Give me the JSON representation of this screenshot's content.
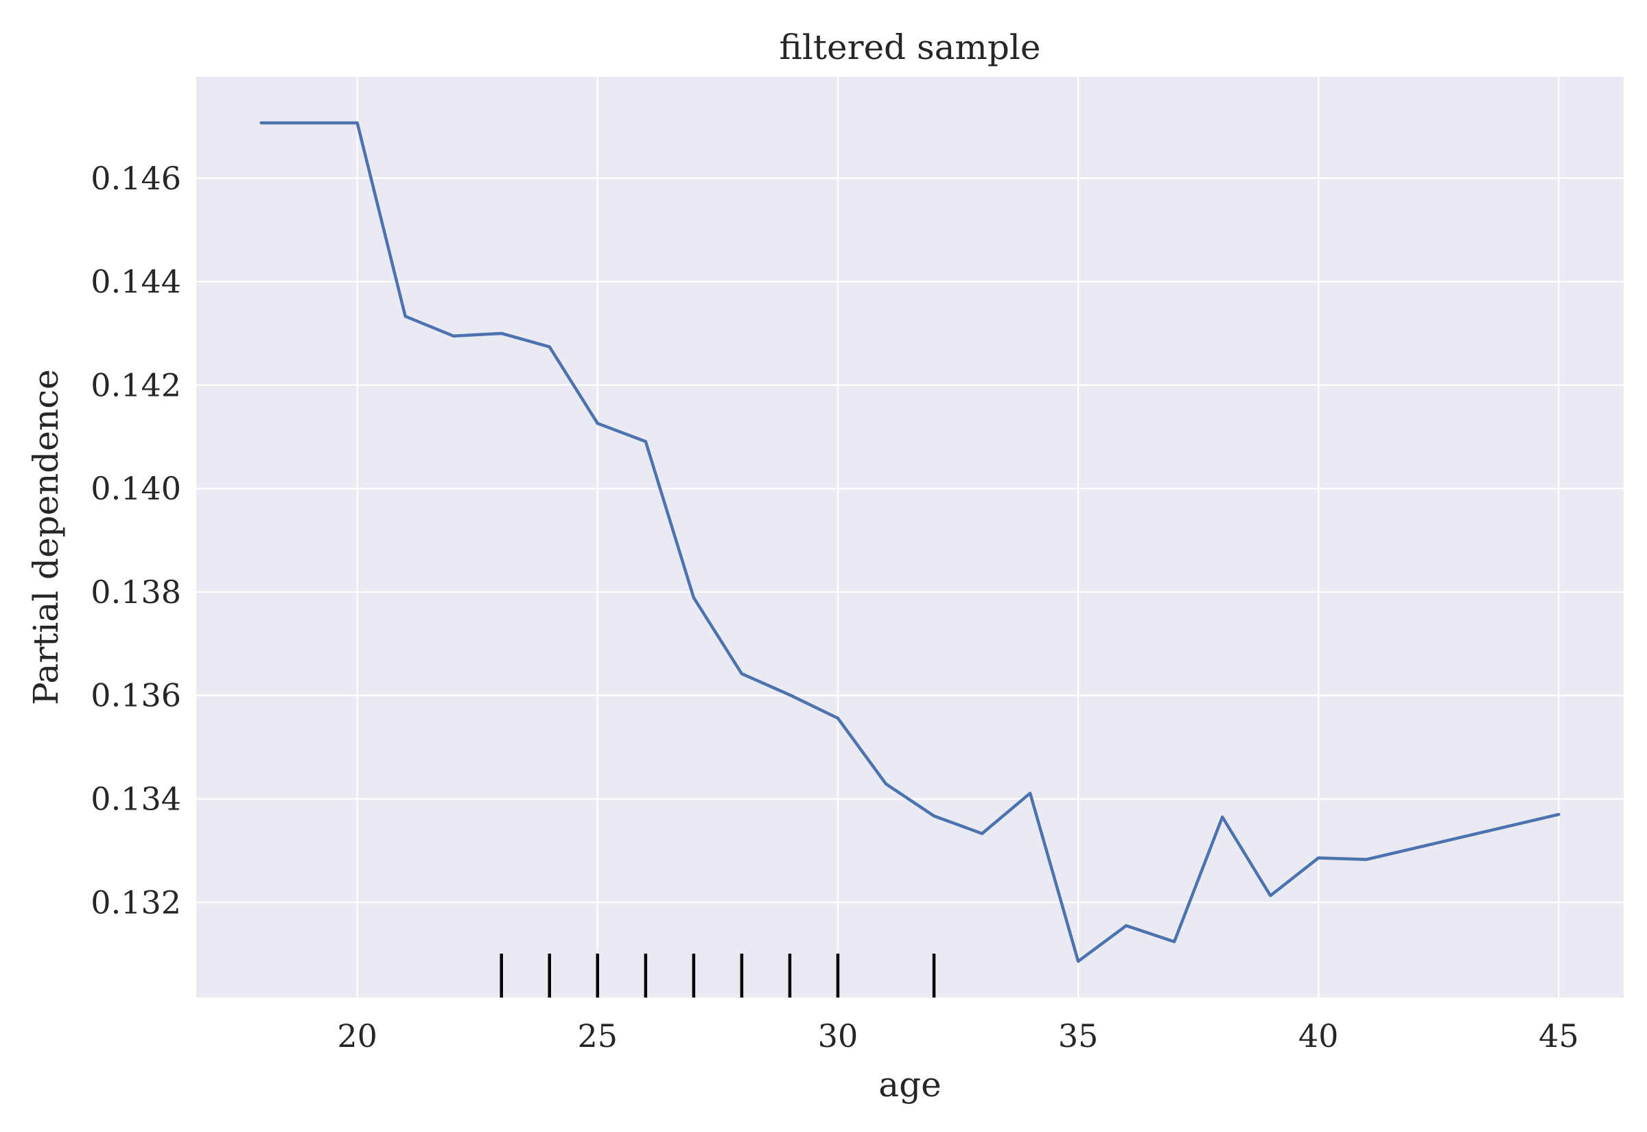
{
  "chart_data": {
    "type": "line",
    "title": "filtered sample",
    "xlabel": "age",
    "ylabel": "Partial dependence",
    "xlim": [
      16.65,
      46.35
    ],
    "ylim": [
      0.13016,
      0.14796
    ],
    "xticks": [
      20,
      25,
      30,
      35,
      40,
      45
    ],
    "xtick_labels": [
      "20",
      "25",
      "30",
      "35",
      "40",
      "45"
    ],
    "yticks": [
      0.132,
      0.134,
      0.136,
      0.138,
      0.14,
      0.142,
      0.144,
      0.146
    ],
    "ytick_labels": [
      "0.132",
      "0.134",
      "0.136",
      "0.138",
      "0.140",
      "0.142",
      "0.144",
      "0.146"
    ],
    "grid": true,
    "colors": {
      "background": "#eaeaf2",
      "line": "#4c72b0",
      "grid": "#ffffff",
      "rug": "#000000"
    },
    "series": [
      {
        "x": [
          18,
          20,
          21,
          22,
          23,
          24,
          25,
          26,
          27,
          28,
          29,
          30,
          31,
          32,
          33,
          34,
          35,
          36,
          37,
          38,
          39,
          40,
          41,
          45
        ],
        "y": [
          0.14707,
          0.14707,
          0.14333,
          0.14295,
          0.143,
          0.14274,
          0.14126,
          0.14091,
          0.13789,
          0.13642,
          0.13601,
          0.13556,
          0.13429,
          0.13367,
          0.13333,
          0.13411,
          0.13086,
          0.13155,
          0.13124,
          0.13365,
          0.13213,
          0.13286,
          0.13283,
          0.1337
        ]
      }
    ],
    "rug_x": [
      23,
      24,
      25,
      26,
      27,
      28,
      29,
      30,
      32
    ]
  }
}
